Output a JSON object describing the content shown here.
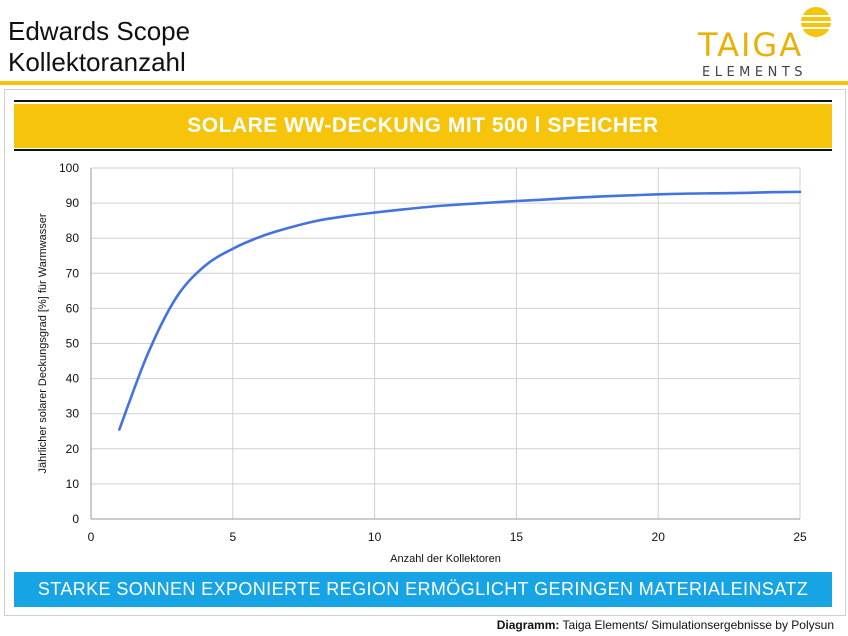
{
  "header": {
    "title_line1": "Edwards Scope",
    "title_line2": "Kollektoranzahl"
  },
  "logo": {
    "name_top": "TAIGA",
    "name_bottom": "ELEMENTS",
    "icon": "sun-icon",
    "color_gold": "#e8b106",
    "color_dark": "#444444"
  },
  "banners": {
    "top": "SOLARE WW-DECKUNG MIT 500 l SPEICHER",
    "bottom": "STARKE SONNEN EXPONIERTE REGION ERMÖGLICHT GERINGEN MATERIALEINSATZ"
  },
  "footer": {
    "label": "Diagramm:",
    "text": "Taiga Elements/ Simulationsergebnisse by Polysun"
  },
  "colors": {
    "accent_yellow": "#f7c40c",
    "accent_blue": "#16a4e4",
    "series": "#4472e0"
  },
  "chart_data": {
    "type": "line",
    "xlabel": "Anzahl der Kollektoren",
    "ylabel": "Jährlicher solarer Deckungsgrad [%]  für Warmwasser",
    "xlim": [
      0,
      25
    ],
    "ylim": [
      0,
      100
    ],
    "xticks": [
      0,
      5,
      10,
      15,
      20,
      25
    ],
    "yticks": [
      0,
      10,
      20,
      30,
      40,
      50,
      60,
      70,
      80,
      90,
      100
    ],
    "grid": true,
    "series": [
      {
        "x": [
          1,
          2,
          3,
          4,
          5,
          6,
          7,
          8,
          9,
          10,
          11,
          12,
          13,
          14,
          15,
          16,
          17,
          18,
          19,
          20,
          21,
          22,
          23,
          24,
          25
        ],
        "values": [
          25.5,
          47,
          63,
          72,
          77,
          80.5,
          83,
          85,
          86.3,
          87.3,
          88.2,
          89,
          89.6,
          90.1,
          90.6,
          91,
          91.5,
          91.9,
          92.2,
          92.5,
          92.7,
          92.8,
          92.9,
          93.1,
          93.2
        ]
      }
    ]
  }
}
